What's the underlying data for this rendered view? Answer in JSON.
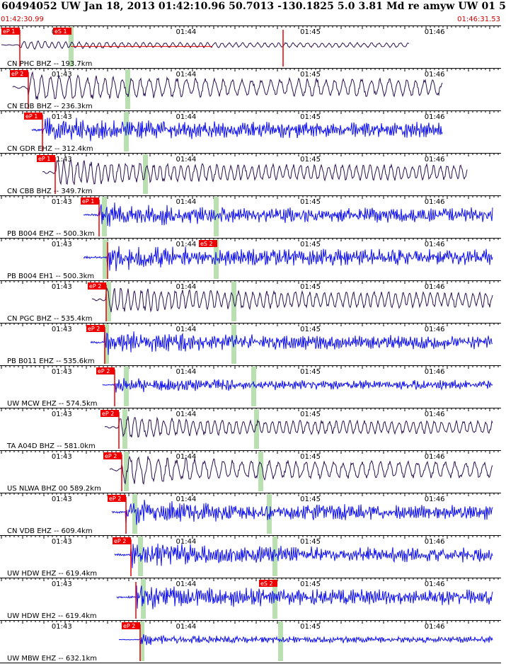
{
  "header": {
    "title": "60494052 UW Jan 18, 2013 01:42:10.96   50.7013 -130.1825  5.0 3.81 Md re amyw UW 01   5",
    "start_time": "01:42:30.99",
    "end_time": "01:46:31.53"
  },
  "colors": {
    "trace_dark": "#2a1250",
    "trace_blue": "#1010ee",
    "pick_box": "#ee0000",
    "marker_green": "#b8e0b0",
    "time_text": "#d00000"
  },
  "chart_data": {
    "type": "seismogram",
    "time_range": [
      "01:42:30.99",
      "01:46:31.53"
    ],
    "minute_ticks": [
      "01:43",
      "01:44",
      "01:45",
      "01:46"
    ],
    "traces": [
      {
        "label": "CN PHC BHZ -- 193.7km",
        "color": "dark",
        "picks": [
          "eP 1",
          "eS 1"
        ],
        "amp": 0.22,
        "end": "01:45:48"
      },
      {
        "label": "CN EDB BHZ -- 236.3km",
        "color": "dark",
        "picks": [
          "eP 2"
        ],
        "amp": 0.8,
        "end": "01:46:04"
      },
      {
        "label": "CN GDR EHZ -- 312.4km",
        "color": "blue",
        "picks": [
          "eP 1"
        ],
        "amp": 0.75,
        "end": "01:46:04"
      },
      {
        "label": "CN CBB BHZ -- 349.7km",
        "color": "dark",
        "picks": [
          "eP 1"
        ],
        "amp": 0.72,
        "end": "01:46:16"
      },
      {
        "label": "PB B004 EHZ -- 500.3km",
        "color": "blue",
        "picks": [
          "eP 1"
        ],
        "amp": 0.72,
        "end": "01:46:34"
      },
      {
        "label": "PB B004 EH1 -- 500.3km",
        "color": "blue",
        "picks": [
          "eS 2"
        ],
        "amp": 0.78,
        "end": "01:46:34"
      },
      {
        "label": "CN PGC BHZ -- 535.4km",
        "color": "dark",
        "picks": [
          "eP 2"
        ],
        "amp": 0.72,
        "end": "01:46:44"
      },
      {
        "label": "PB B011 EHZ -- 535.6km",
        "color": "blue",
        "picks": [
          "eP 2"
        ],
        "amp": 0.68,
        "end": "01:46:44"
      },
      {
        "label": "UW MCW EHZ -- 574.5km",
        "color": "blue",
        "picks": [
          "eP 2"
        ],
        "amp": 0.45,
        "end": "01:46:56"
      },
      {
        "label": "TA A04D BHZ -- 581.0km",
        "color": "dark",
        "picks": [
          "eP 2"
        ],
        "amp": 0.6,
        "end": "01:46:56"
      },
      {
        "label": "US NLWA BHZ 00 589.2km",
        "color": "dark",
        "picks": [
          "eP 2"
        ],
        "amp": 0.78,
        "end": "01:46:56"
      },
      {
        "label": "CN VDB EHZ -- 609.4km",
        "color": "blue",
        "picks": [
          "eP 2"
        ],
        "amp": 0.72,
        "end": "01:46:56"
      },
      {
        "label": "UW HDW EHZ -- 619.4km",
        "color": "blue",
        "picks": [
          "eP 2"
        ],
        "amp": 0.72,
        "end": "01:46:56"
      },
      {
        "label": "UW HDW EH2 -- 619.4km",
        "color": "blue",
        "picks": [
          "eS 2"
        ],
        "amp": 0.72,
        "end": "01:46:56"
      },
      {
        "label": "UW MBW EHZ -- 632.1km",
        "color": "blue",
        "picks": [
          "eP 2"
        ],
        "amp": 0.3,
        "end": "01:46:56"
      }
    ]
  }
}
